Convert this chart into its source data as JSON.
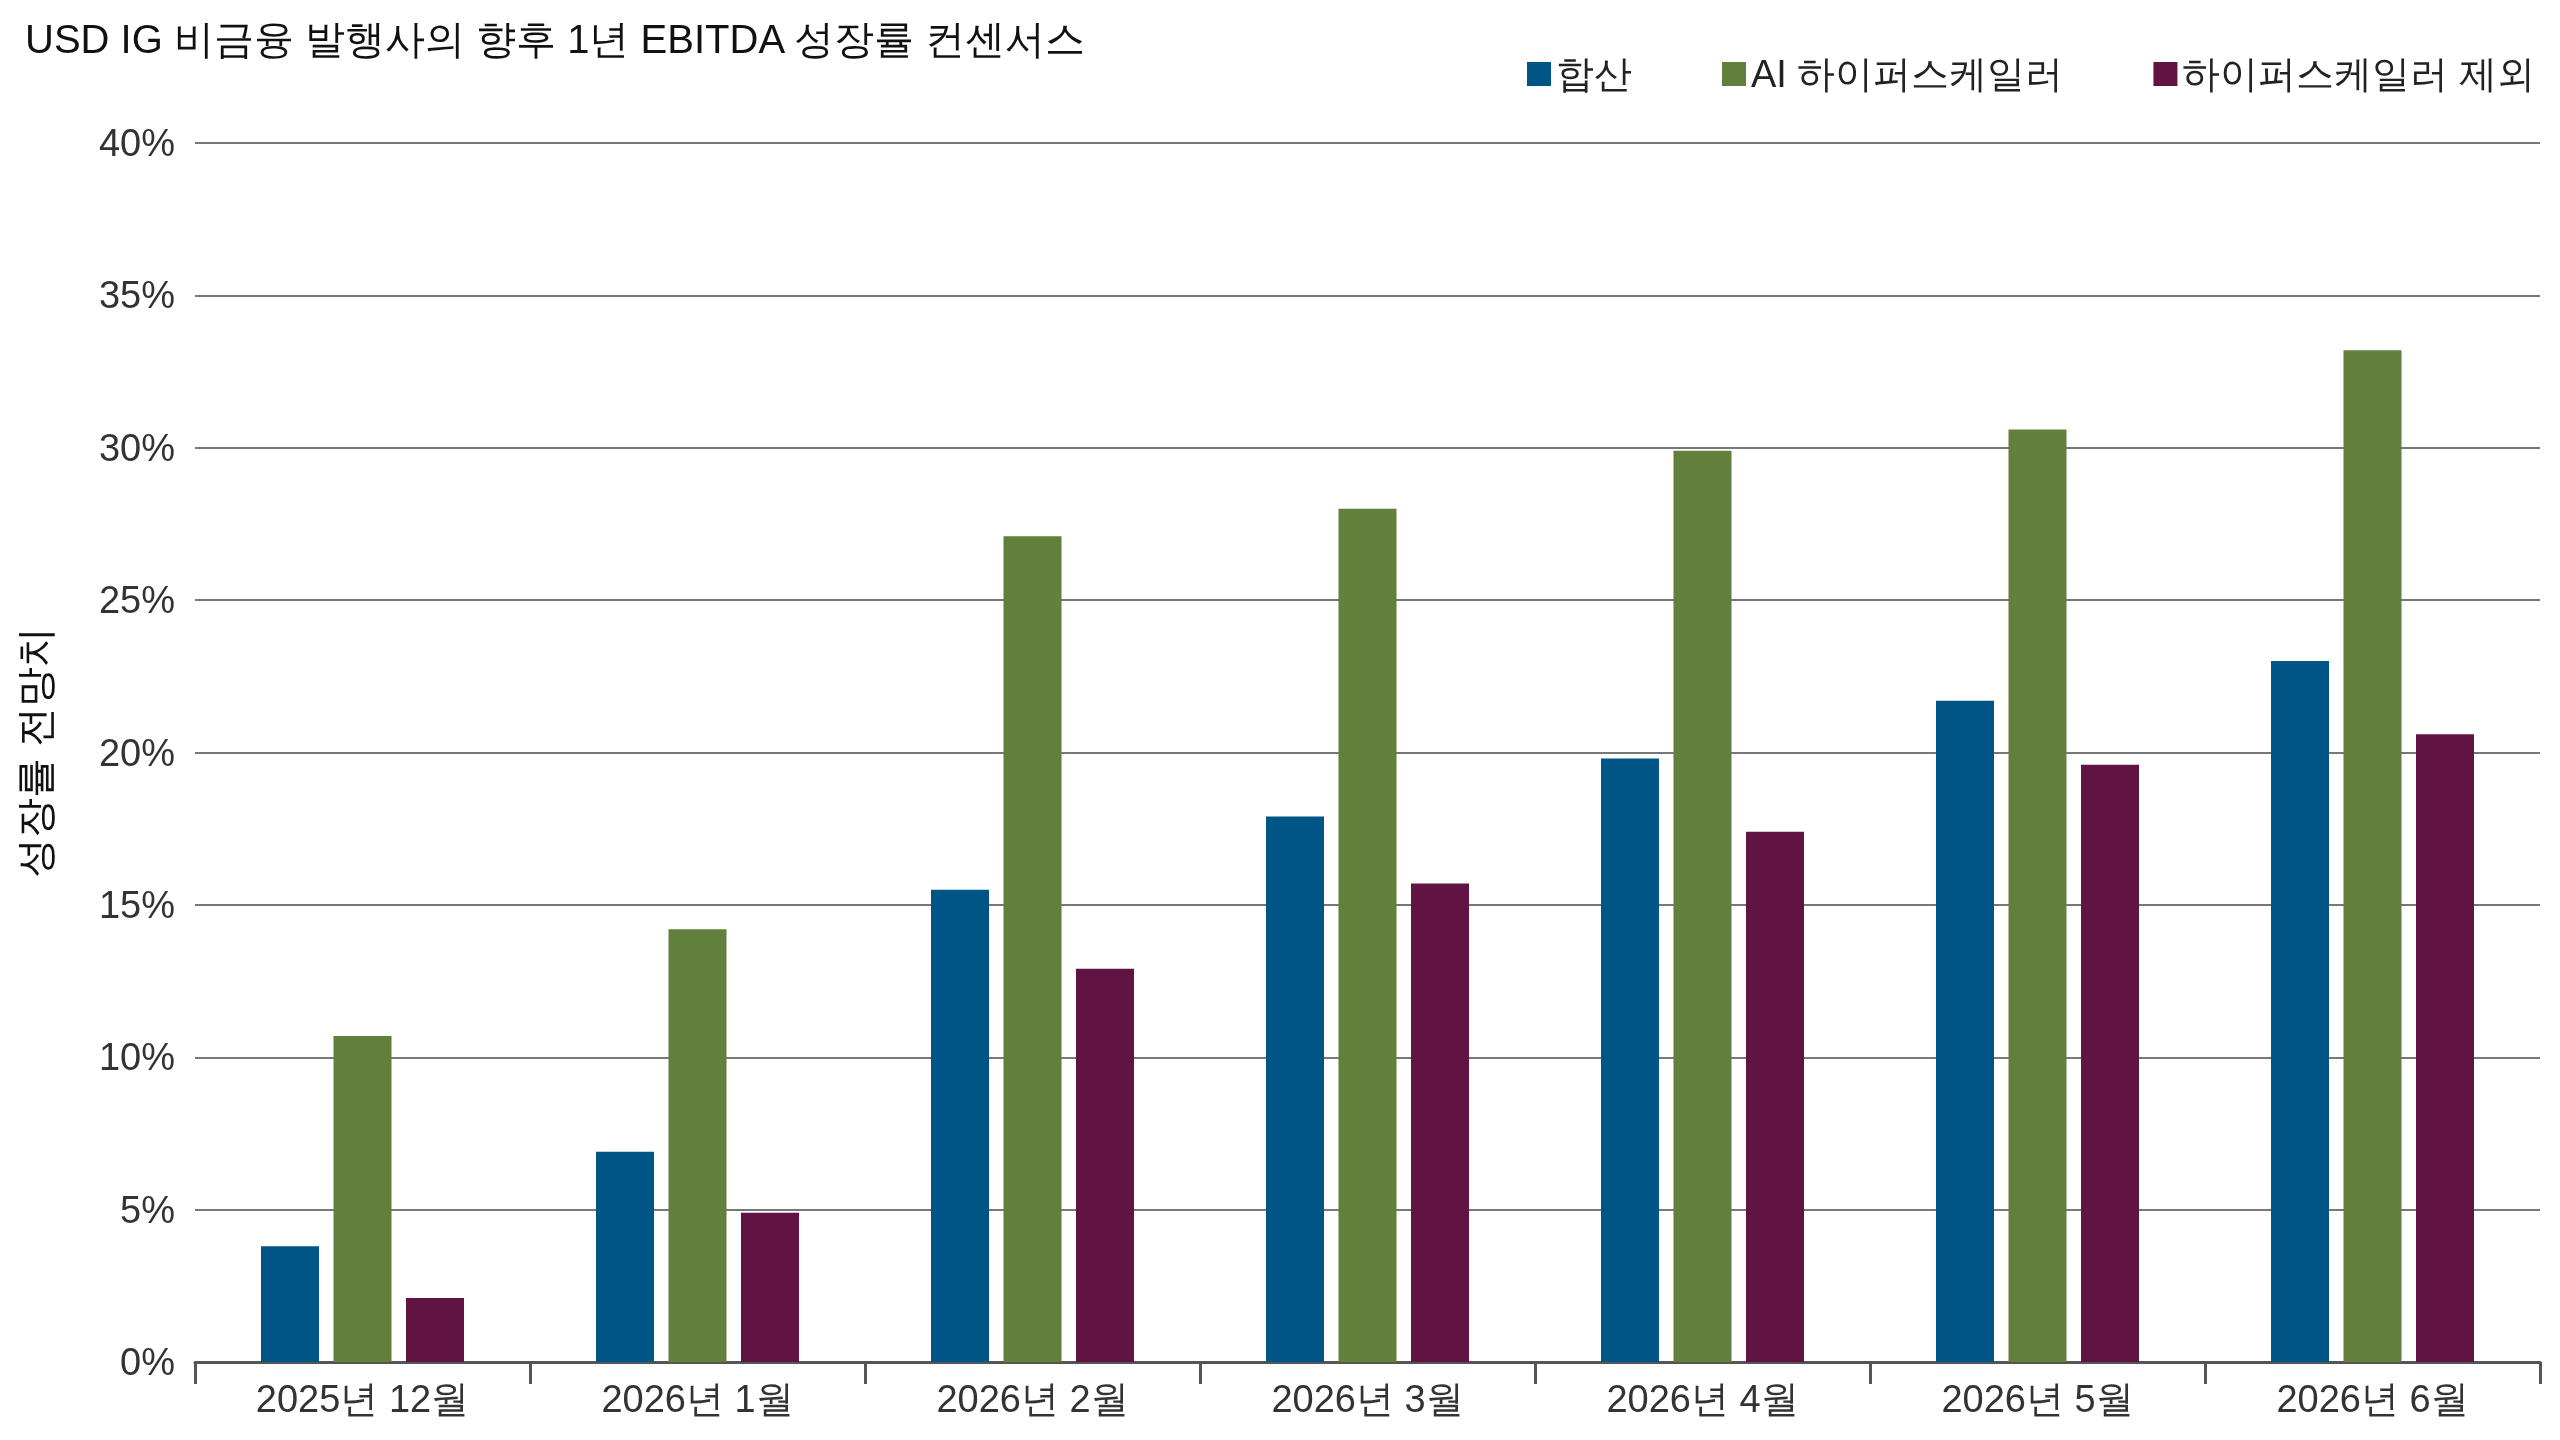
{
  "chart_data": {
    "type": "bar",
    "title": "USD IG 비금융 발행사의 향후 1년 EBITDA 성장률 컨센서스",
    "ylabel": "성장률 전망치",
    "categories": [
      "2025년 12월",
      "2026년 1월",
      "2026년 2월",
      "2026년 3월",
      "2026년 4월",
      "2026년 5월",
      "2026년 6월"
    ],
    "series": [
      {
        "name": "합산",
        "color": "#005587",
        "values": [
          3.8,
          6.9,
          15.5,
          17.9,
          19.8,
          21.7,
          23.0
        ]
      },
      {
        "name": "AI 하이퍼스케일러",
        "color": "#60803b",
        "values": [
          10.7,
          14.2,
          27.1,
          28.0,
          29.9,
          30.6,
          33.2
        ]
      },
      {
        "name": "하이퍼스케일러 제외",
        "color": "#611443",
        "values": [
          2.1,
          4.9,
          12.9,
          15.7,
          17.4,
          19.6,
          20.6
        ]
      }
    ],
    "ylim": [
      0,
      40
    ],
    "yticks": [
      {
        "value": 0,
        "label": "0%"
      },
      {
        "value": 5,
        "label": "5%"
      },
      {
        "value": 10,
        "label": "10%"
      },
      {
        "value": 15,
        "label": "15%"
      },
      {
        "value": 20,
        "label": "20%"
      },
      {
        "value": 25,
        "label": "25%"
      },
      {
        "value": 30,
        "label": "30%"
      },
      {
        "value": 35,
        "label": "35%"
      },
      {
        "value": 40,
        "label": "40%"
      }
    ],
    "grid": "y",
    "legend": "top right"
  }
}
